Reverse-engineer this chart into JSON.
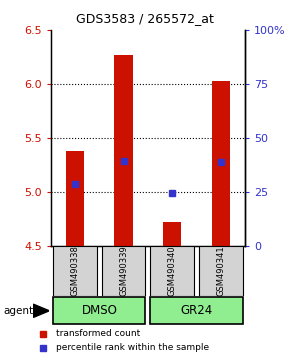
{
  "title": "GDS3583 / 265572_at",
  "samples": [
    "GSM490338",
    "GSM490339",
    "GSM490340",
    "GSM490341"
  ],
  "group_labels": [
    "DMSO",
    "GR24"
  ],
  "bar_color": "#cc1100",
  "dot_color": "#3333cc",
  "ylim_left": [
    4.5,
    6.5
  ],
  "ylim_right": [
    0,
    100
  ],
  "yticks_left": [
    4.5,
    5.0,
    5.5,
    6.0,
    6.5
  ],
  "yticks_right": [
    0,
    25,
    50,
    75,
    100
  ],
  "ytick_labels_right": [
    "0",
    "25",
    "50",
    "75",
    "100%"
  ],
  "bar_bottoms": [
    4.5,
    4.5,
    4.5,
    4.5
  ],
  "bar_tops": [
    5.38,
    6.27,
    4.72,
    6.03
  ],
  "dot_values": [
    5.07,
    5.29,
    4.99,
    5.28
  ],
  "agent_label": "agent",
  "legend_red": "transformed count",
  "legend_blue": "percentile rank within the sample",
  "sample_box_color": "#d3d3d3",
  "group_box_green": "#90EE90",
  "grid_yticks": [
    5.0,
    5.5,
    6.0
  ]
}
